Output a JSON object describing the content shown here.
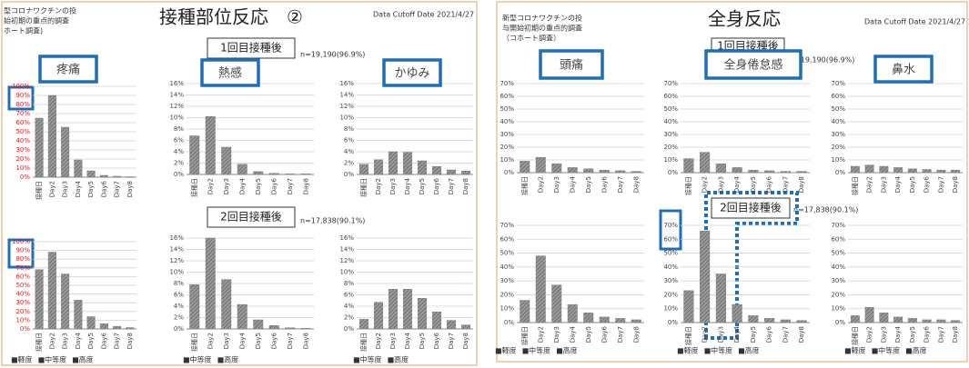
{
  "slides": [
    {
      "header": [
        "型コロナワクチンの投",
        "始初期の重点的調査",
        "ホート調査)"
      ],
      "title": "接種部位反応　②",
      "cutoff": "Data Cutoff Date 2021/4/27",
      "dose1": "1回目接種後",
      "n1": "n=19,190(96.9%)",
      "dose2": "2回目接種後",
      "n2": "n=17,838(90.1%)"
    },
    {
      "header": [
        "新型コロナワクチンの投",
        "与開始初期の重点的調査",
        "（コホート調査）"
      ],
      "title": "全身反応",
      "cutoff": "Data Cutoff Date 2021/4/27 12",
      "dose1": "1回目接種後",
      "n1": "n=19,190(96.9%)",
      "dose2": "2回目接種後",
      "n2": "n=17,838(90.1%)"
    }
  ],
  "chart_data": [
    {
      "type": "bar",
      "title": "疼痛",
      "categories": [
        "接種日",
        "Day2",
        "Day3",
        "Day4",
        "Day5",
        "Day6",
        "Day7",
        "Day8"
      ],
      "values": [
        65,
        90,
        55,
        19,
        7,
        2,
        1,
        0.5
      ],
      "color": "#808080",
      "tick_color": "#e02020",
      "grid": true,
      "ylim": [
        0,
        100
      ],
      "yticks": [
        {
          "value": 0,
          "label": "0%"
        },
        {
          "value": 10,
          "label": "10%"
        },
        {
          "value": 20,
          "label": "20%"
        },
        {
          "value": 30,
          "label": "30%"
        },
        {
          "value": 40,
          "label": "40%"
        },
        {
          "value": 50,
          "label": "50%"
        },
        {
          "value": 60,
          "label": "60%"
        },
        {
          "value": 70,
          "label": "70%"
        },
        {
          "value": 80,
          "label": "80%"
        },
        {
          "value": 90,
          "label": "90%"
        },
        {
          "value": 100,
          "label": "100%"
        }
      ]
    },
    {
      "type": "bar",
      "title": "熱感",
      "categories": [
        "接種日",
        "Day2",
        "Day3",
        "Day4",
        "Day5",
        "Day6",
        "Day7",
        "Day8"
      ],
      "values": [
        6.8,
        10.2,
        4.8,
        1.8,
        0.5,
        0.2,
        0.1,
        0.1
      ],
      "color": "#808080",
      "grid": true,
      "ylim": [
        0,
        16
      ],
      "yticks": [
        {
          "value": 0,
          "label": "0%"
        },
        {
          "value": 2,
          "label": "2%"
        },
        {
          "value": 4,
          "label": "4%"
        },
        {
          "value": 6,
          "label": "6%"
        },
        {
          "value": 8,
          "label": "8%"
        },
        {
          "value": 10,
          "label": "10%"
        },
        {
          "value": 12,
          "label": "12%"
        },
        {
          "value": 14,
          "label": "14%"
        },
        {
          "value": 16,
          "label": "16%"
        }
      ]
    },
    {
      "type": "bar",
      "title": "かゆみ",
      "categories": [
        "接種日",
        "Day2",
        "Day3",
        "Day4",
        "Day5",
        "Day6",
        "Day7",
        "Day8"
      ],
      "values": [
        1.8,
        2.6,
        4.0,
        3.9,
        2.4,
        1.4,
        0.8,
        0.6
      ],
      "color": "#808080",
      "grid": true,
      "ylim": [
        0,
        16
      ],
      "yticks": [
        {
          "value": 0,
          "label": "0%"
        },
        {
          "value": 2,
          "label": "2%"
        },
        {
          "value": 4,
          "label": "4%"
        },
        {
          "value": 6,
          "label": "6%"
        },
        {
          "value": 8,
          "label": "8%"
        },
        {
          "value": 10,
          "label": "10%"
        },
        {
          "value": 12,
          "label": "12%"
        },
        {
          "value": 14,
          "label": "14%"
        },
        {
          "value": 16,
          "label": "16%"
        }
      ]
    },
    {
      "type": "bar",
      "categories": [
        "接種日",
        "Day2",
        "Day3",
        "Day4",
        "Day5",
        "Day6",
        "Day7",
        "Day8"
      ],
      "values": [
        68,
        88,
        63,
        33,
        14,
        6,
        3,
        1.5
      ],
      "color": "#808080",
      "tick_color": "#e02020",
      "grid": true,
      "legend": [
        "■軽度",
        "■中等度",
        "■高度"
      ],
      "ylim": [
        0,
        100
      ],
      "yticks": [
        {
          "value": 0,
          "label": "0%"
        },
        {
          "value": 10,
          "label": "10%"
        },
        {
          "value": 20,
          "label": "20%"
        },
        {
          "value": 30,
          "label": "30%"
        },
        {
          "value": 40,
          "label": "40%"
        },
        {
          "value": 50,
          "label": "50%"
        },
        {
          "value": 60,
          "label": "60%"
        },
        {
          "value": 70,
          "label": "70%"
        },
        {
          "value": 80,
          "label": "80%"
        },
        {
          "value": 90,
          "label": "90%"
        },
        {
          "value": 100,
          "label": "100%"
        }
      ]
    },
    {
      "type": "bar",
      "categories": [
        "接種日",
        "Day2",
        "Day3",
        "Day4",
        "Day5",
        "Day6",
        "Day7",
        "Day8"
      ],
      "values": [
        7.8,
        16,
        8.7,
        4.3,
        1.6,
        0.6,
        0.2,
        0.1
      ],
      "color": "#808080",
      "grid": true,
      "legend": [
        "■中等度",
        "■高度"
      ],
      "ylim": [
        0,
        16
      ],
      "yticks": [
        {
          "value": 0,
          "label": "0%"
        },
        {
          "value": 2,
          "label": "2%"
        },
        {
          "value": 4,
          "label": "4%"
        },
        {
          "value": 6,
          "label": "6%"
        },
        {
          "value": 8,
          "label": "8%"
        },
        {
          "value": 10,
          "label": "10%"
        },
        {
          "value": 12,
          "label": "12%"
        },
        {
          "value": 14,
          "label": "14%"
        },
        {
          "value": 16,
          "label": "16%"
        }
      ]
    },
    {
      "type": "bar",
      "categories": [
        "接種日",
        "Day2",
        "Day3",
        "Day4",
        "Day5",
        "Day6",
        "Day7",
        "Day8"
      ],
      "values": [
        1.7,
        4.7,
        7.0,
        7.0,
        5.4,
        3.0,
        1.5,
        0.7
      ],
      "color": "#808080",
      "grid": true,
      "legend": [
        "■中等度",
        "■高度"
      ],
      "ylim": [
        0,
        16
      ],
      "yticks": [
        {
          "value": 0,
          "label": "0%"
        },
        {
          "value": 2,
          "label": "2%"
        },
        {
          "value": 4,
          "label": "4%"
        },
        {
          "value": 6,
          "label": "6%"
        },
        {
          "value": 8,
          "label": "8%"
        },
        {
          "value": 10,
          "label": "10%"
        },
        {
          "value": 12,
          "label": "12%"
        },
        {
          "value": 14,
          "label": "14%"
        },
        {
          "value": 16,
          "label": "16%"
        }
      ]
    },
    {
      "type": "bar",
      "title": "頭痛",
      "categories": [
        "接種日",
        "Day2",
        "Day3",
        "Day4",
        "Day5",
        "Day6",
        "Day7",
        "Day8"
      ],
      "values": [
        9,
        12,
        7,
        4,
        3,
        2,
        1.5,
        1
      ],
      "color": "#808080",
      "grid": true,
      "ylim": [
        0,
        70
      ],
      "yticks": [
        {
          "value": 0,
          "label": "0%"
        },
        {
          "value": 10,
          "label": "10%"
        },
        {
          "value": 20,
          "label": "20%"
        },
        {
          "value": 30,
          "label": "30%"
        },
        {
          "value": 40,
          "label": "40%"
        },
        {
          "value": 50,
          "label": "50%"
        },
        {
          "value": 60,
          "label": "60%"
        },
        {
          "value": 70,
          "label": "70%"
        }
      ]
    },
    {
      "type": "bar",
      "title": "全身倦怠感",
      "categories": [
        "接種日",
        "Day2",
        "Day3",
        "Day4",
        "Day5",
        "Day6",
        "Day7",
        "Day8"
      ],
      "values": [
        11,
        16,
        7,
        4,
        2,
        1.5,
        1,
        1
      ],
      "color": "#808080",
      "grid": true,
      "ylim": [
        0,
        70
      ],
      "yticks": [
        {
          "value": 0,
          "label": "0%"
        },
        {
          "value": 10,
          "label": "10%"
        },
        {
          "value": 20,
          "label": "20%"
        },
        {
          "value": 30,
          "label": "30%"
        },
        {
          "value": 40,
          "label": "40%"
        },
        {
          "value": 50,
          "label": "50%"
        },
        {
          "value": 60,
          "label": "60%"
        },
        {
          "value": 70,
          "label": "70%"
        }
      ]
    },
    {
      "type": "bar",
      "title": "鼻水",
      "categories": [
        "接種日",
        "Day2",
        "Day3",
        "Day4",
        "Day5",
        "Day6",
        "Day7",
        "Day8"
      ],
      "values": [
        5,
        6,
        5,
        4,
        3,
        2.5,
        2,
        2
      ],
      "color": "#808080",
      "grid": true,
      "ylim": [
        0,
        70
      ],
      "yticks": [
        {
          "value": 0,
          "label": "0%"
        },
        {
          "value": 10,
          "label": "10%"
        },
        {
          "value": 20,
          "label": "20%"
        },
        {
          "value": 30,
          "label": "30%"
        },
        {
          "value": 40,
          "label": "40%"
        },
        {
          "value": 50,
          "label": "50%"
        },
        {
          "value": 60,
          "label": "60%"
        },
        {
          "value": 70,
          "label": "70%"
        }
      ]
    },
    {
      "type": "bar",
      "categories": [
        "接種日",
        "Day2",
        "Day3",
        "Day4",
        "Day5",
        "Day6",
        "Day7",
        "Day8"
      ],
      "values": [
        16,
        48,
        27,
        13,
        7,
        4,
        3,
        2
      ],
      "color": "#808080",
      "grid": true,
      "legend": [
        "■軽度",
        "■中等度",
        "■高度"
      ],
      "ylim": [
        0,
        70
      ],
      "yticks": [
        {
          "value": 0,
          "label": "0%"
        },
        {
          "value": 10,
          "label": "10%"
        },
        {
          "value": 20,
          "label": "20%"
        },
        {
          "value": 30,
          "label": "30%"
        },
        {
          "value": 40,
          "label": "40%"
        },
        {
          "value": 50,
          "label": "50%"
        },
        {
          "value": 60,
          "label": "60%"
        },
        {
          "value": 70,
          "label": "70%"
        }
      ]
    },
    {
      "type": "bar",
      "categories": [
        "接種日",
        "Day2",
        "Day3",
        "Day4",
        "Day5",
        "Day6",
        "Day7",
        "Day8"
      ],
      "values": [
        23,
        66,
        35,
        13,
        5,
        3,
        2,
        1.5
      ],
      "color": "#808080",
      "grid": true,
      "legend": [
        "■軽度",
        "■中等度",
        "■高度"
      ],
      "ylim": [
        0,
        70
      ],
      "yticks": [
        {
          "value": 0,
          "label": "0%"
        },
        {
          "value": 10,
          "label": "10%"
        },
        {
          "value": 20,
          "label": "20%"
        },
        {
          "value": 30,
          "label": "30%"
        },
        {
          "value": 40,
          "label": "40%"
        },
        {
          "value": 50,
          "label": "50%"
        },
        {
          "value": 60,
          "label": "60%"
        },
        {
          "value": 70,
          "label": "70%"
        }
      ]
    },
    {
      "type": "bar",
      "categories": [
        "接種日",
        "Day2",
        "Day3",
        "Day4",
        "Day5",
        "Day6",
        "Day7",
        "Day8"
      ],
      "values": [
        5,
        11,
        7,
        4,
        3,
        2,
        2,
        1.5
      ],
      "color": "#808080",
      "grid": true,
      "legend": [
        "■軽度",
        "■中等度",
        "■高度"
      ],
      "ylim": [
        0,
        70
      ],
      "yticks": [
        {
          "value": 0,
          "label": "0%"
        },
        {
          "value": 10,
          "label": "10%"
        },
        {
          "value": 20,
          "label": "20%"
        },
        {
          "value": 30,
          "label": "30%"
        },
        {
          "value": 40,
          "label": "40%"
        },
        {
          "value": 50,
          "label": "50%"
        },
        {
          "value": 60,
          "label": "60%"
        },
        {
          "value": 70,
          "label": "70%"
        }
      ]
    }
  ]
}
